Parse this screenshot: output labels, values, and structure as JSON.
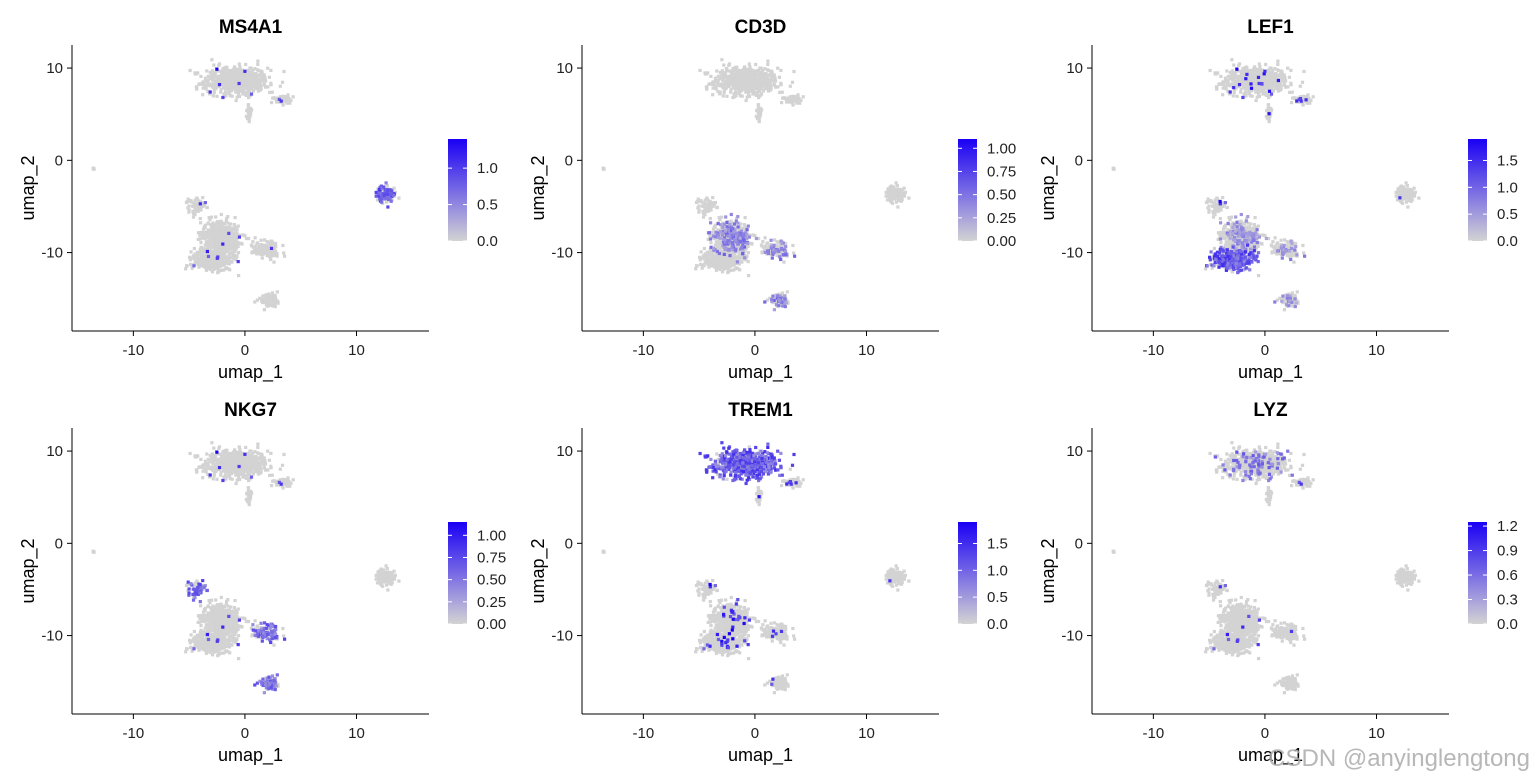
{
  "watermark": "CSDN @anyinglengtong",
  "colors": {
    "low": "#d3d3d3",
    "high": "#1a00f5",
    "axis": "#000000"
  },
  "layout_hint": {
    "rows": 2,
    "cols": 3
  },
  "chart_data": [
    {
      "type": "scatter",
      "title": "MS4A1",
      "xlabel": "umap_1",
      "ylabel": "umap_2",
      "xlim": [
        -15.5,
        16.5
      ],
      "ylim": [
        -18.5,
        12.5
      ],
      "xticks": [
        -10,
        0,
        10
      ],
      "yticks": [
        10,
        0,
        -10
      ],
      "legend": {
        "max": 1.4,
        "ticks": [
          0.0,
          0.5,
          1.0
        ],
        "labels": [
          "0.0",
          "0.5",
          "1.0"
        ],
        "position": "right"
      },
      "highlight": {
        "clusters": [
          "b_cells"
        ],
        "intensity": 0.75,
        "density": 0.55
      },
      "sparse": 0.01
    },
    {
      "type": "scatter",
      "title": "CD3D",
      "xlabel": "umap_1",
      "ylabel": "umap_2",
      "xlim": [
        -15.5,
        16.5
      ],
      "ylim": [
        -18.5,
        12.5
      ],
      "xticks": [
        -10,
        0,
        10
      ],
      "yticks": [
        10,
        0,
        -10
      ],
      "legend": {
        "max": 1.1,
        "ticks": [
          0.0,
          0.25,
          0.5,
          0.75,
          1.0
        ],
        "labels": [
          "0.00",
          "0.25",
          "0.50",
          "0.75",
          "1.00"
        ],
        "position": "right"
      },
      "highlight": {
        "clusters": [
          "t_main",
          "t_right",
          "nk"
        ],
        "intensity": 0.55,
        "density": 0.3
      },
      "sparse": 0.0
    },
    {
      "type": "scatter",
      "title": "LEF1",
      "xlabel": "umap_1",
      "ylabel": "umap_2",
      "xlim": [
        -15.5,
        16.5
      ],
      "ylim": [
        -18.5,
        12.5
      ],
      "xticks": [
        -10,
        0,
        10
      ],
      "yticks": [
        10,
        0,
        -10
      ],
      "legend": {
        "max": 1.9,
        "ticks": [
          0.0,
          0.5,
          1.0,
          1.5
        ],
        "labels": [
          "0.0",
          "0.5",
          "1.0",
          "1.5"
        ],
        "position": "right"
      },
      "highlight": {
        "clusters": [
          "t_naive"
        ],
        "intensity": 0.8,
        "density": 0.75
      },
      "secondary": {
        "clusters": [
          "t_main",
          "t_right",
          "nk"
        ],
        "intensity": 0.45,
        "density": 0.2
      },
      "sparse": 0.03
    },
    {
      "type": "scatter",
      "title": "NKG7",
      "xlabel": "umap_1",
      "ylabel": "umap_2",
      "xlim": [
        -15.5,
        16.5
      ],
      "ylim": [
        -18.5,
        12.5
      ],
      "xticks": [
        -10,
        0,
        10
      ],
      "yticks": [
        10,
        0,
        -10
      ],
      "legend": {
        "max": 1.15,
        "ticks": [
          0.0,
          0.25,
          0.5,
          0.75,
          1.0
        ],
        "labels": [
          "0.00",
          "0.25",
          "0.50",
          "0.75",
          "1.00"
        ],
        "position": "right"
      },
      "highlight": {
        "clusters": [
          "nk",
          "t_right",
          "t_cd8_top"
        ],
        "intensity": 0.7,
        "density": 0.55
      },
      "sparse": 0.01
    },
    {
      "type": "scatter",
      "title": "TREM1",
      "xlabel": "umap_1",
      "ylabel": "umap_2",
      "xlim": [
        -15.5,
        16.5
      ],
      "ylim": [
        -18.5,
        12.5
      ],
      "xticks": [
        -10,
        0,
        10
      ],
      "yticks": [
        10,
        0,
        -10
      ],
      "legend": {
        "max": 1.9,
        "ticks": [
          0.0,
          0.5,
          1.0,
          1.5
        ],
        "labels": [
          "0.0",
          "0.5",
          "1.0",
          "1.5"
        ],
        "position": "right"
      },
      "highlight": {
        "clusters": [
          "mono"
        ],
        "intensity": 0.8,
        "density": 0.85
      },
      "sparse": 0.03
    },
    {
      "type": "scatter",
      "title": "LYZ",
      "xlabel": "umap_1",
      "ylabel": "umap_2",
      "xlim": [
        -15.5,
        16.5
      ],
      "ylim": [
        -18.5,
        12.5
      ],
      "xticks": [
        -10,
        0,
        10
      ],
      "yticks": [
        10,
        0,
        -10
      ],
      "legend": {
        "max": 1.25,
        "ticks": [
          0.0,
          0.3,
          0.6,
          0.9,
          1.2
        ],
        "labels": [
          "0.0",
          "0.3",
          "0.6",
          "0.9",
          "1.2"
        ],
        "position": "right"
      },
      "highlight": {
        "clusters": [
          "mono"
        ],
        "intensity": 0.6,
        "density": 0.12
      },
      "sparse": 0.01
    }
  ]
}
